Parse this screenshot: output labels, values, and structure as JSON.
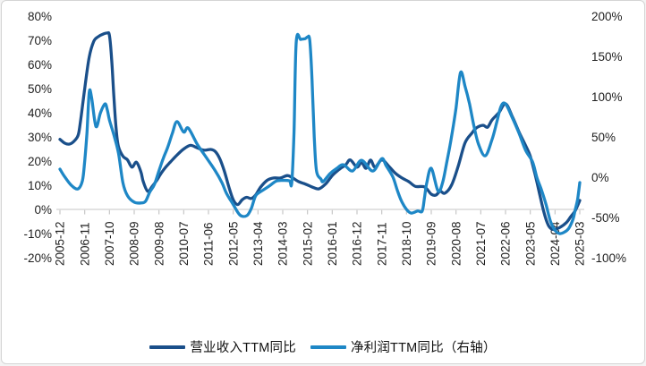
{
  "page": {
    "background": "#ffffff",
    "card_border": "#d4d4d4"
  },
  "chart_data": {
    "type": "line",
    "title": "",
    "grid": "none",
    "legend_position": "bottom",
    "colors": {
      "revenue_line": "#1a4f8a",
      "profit_line": "#1e87c6",
      "axis_line": "#d9d9d9",
      "tick_mark": "#c6c6c6",
      "label_text": "#1f1f1f"
    },
    "left_axis": {
      "min": -20,
      "max": 80,
      "step": 10,
      "labels": [
        "80%",
        "70%",
        "60%",
        "50%",
        "40%",
        "30%",
        "20%",
        "10%",
        "0%",
        "-10%",
        "-20%"
      ]
    },
    "right_axis": {
      "min": -100,
      "max": 200,
      "step": 50,
      "labels": [
        "200%",
        "150%",
        "100%",
        "50%",
        "0%",
        "-50%",
        "-100%"
      ]
    },
    "x_axis": {
      "start": "2005-12",
      "end": "2025-03",
      "label_interval_months": 11,
      "labels": [
        "2005-12",
        "2006-11",
        "2007-10",
        "2008-09",
        "2009-08",
        "2010-07",
        "2011-06",
        "2012-05",
        "2013-04",
        "2014-03",
        "2015-02",
        "2016-01",
        "2016-12",
        "2017-11",
        "2018-10",
        "2019-09",
        "2020-08",
        "2021-07",
        "2022-06",
        "2023-05",
        "2024-04",
        "2025-03"
      ]
    },
    "series": [
      {
        "name": "营业收入TTM同比",
        "axis": "left",
        "color_key": "revenue_line",
        "points": [
          [
            "2005-12",
            29
          ],
          [
            "2006-02",
            27.5
          ],
          [
            "2006-04",
            27
          ],
          [
            "2006-06",
            28
          ],
          [
            "2006-08",
            30.5
          ],
          [
            "2006-09",
            35.5
          ],
          [
            "2006-11",
            50
          ],
          [
            "2007-01",
            63
          ],
          [
            "2007-03",
            69.5
          ],
          [
            "2007-05",
            71.5
          ],
          [
            "2007-07",
            72.5
          ],
          [
            "2007-09",
            73
          ],
          [
            "2007-10",
            72
          ],
          [
            "2007-11",
            62
          ],
          [
            "2007-12",
            46
          ],
          [
            "2008-01",
            33
          ],
          [
            "2008-02",
            26
          ],
          [
            "2008-04",
            22
          ],
          [
            "2008-06",
            20.5
          ],
          [
            "2008-08",
            17.5
          ],
          [
            "2008-10",
            19.5
          ],
          [
            "2008-12",
            15.5
          ],
          [
            "2009-01",
            11.5
          ],
          [
            "2009-03",
            7.5
          ],
          [
            "2009-05",
            9.5
          ],
          [
            "2009-07",
            12
          ],
          [
            "2009-09",
            15
          ],
          [
            "2009-11",
            17.5
          ],
          [
            "2010-01",
            19.5
          ],
          [
            "2010-04",
            22.5
          ],
          [
            "2010-07",
            25
          ],
          [
            "2010-10",
            26.5
          ],
          [
            "2011-01",
            25.5
          ],
          [
            "2011-04",
            24.5
          ],
          [
            "2011-07",
            24.8
          ],
          [
            "2011-09",
            24
          ],
          [
            "2011-11",
            21
          ],
          [
            "2012-01",
            16
          ],
          [
            "2012-03",
            9.5
          ],
          [
            "2012-05",
            4
          ],
          [
            "2012-07",
            2
          ],
          [
            "2012-09",
            4
          ],
          [
            "2012-11",
            5
          ],
          [
            "2013-01",
            4.5
          ],
          [
            "2013-03",
            6
          ],
          [
            "2013-05",
            9
          ],
          [
            "2013-08",
            12
          ],
          [
            "2013-11",
            13
          ],
          [
            "2014-02",
            13
          ],
          [
            "2014-05",
            14
          ],
          [
            "2014-07",
            13.3
          ],
          [
            "2014-10",
            11.5
          ],
          [
            "2015-01",
            10.5
          ],
          [
            "2015-04",
            9.3
          ],
          [
            "2015-07",
            8.5
          ],
          [
            "2015-10",
            10.5
          ],
          [
            "2016-01",
            14
          ],
          [
            "2016-04",
            16.5
          ],
          [
            "2016-07",
            18.5
          ],
          [
            "2016-09",
            20.5
          ],
          [
            "2016-12",
            17.5
          ],
          [
            "2017-02",
            19.5
          ],
          [
            "2017-04",
            17
          ],
          [
            "2017-06",
            20.4
          ],
          [
            "2017-08",
            17.5
          ],
          [
            "2017-11",
            20.5
          ],
          [
            "2018-02",
            18
          ],
          [
            "2018-05",
            15
          ],
          [
            "2018-08",
            13
          ],
          [
            "2018-11",
            11.5
          ],
          [
            "2019-02",
            9.5
          ],
          [
            "2019-06",
            9.3
          ],
          [
            "2019-09",
            6.3
          ],
          [
            "2019-11",
            5.9
          ],
          [
            "2020-01",
            7.5
          ],
          [
            "2020-03",
            6.7
          ],
          [
            "2020-06",
            10
          ],
          [
            "2020-09",
            18
          ],
          [
            "2020-12",
            27.5
          ],
          [
            "2021-03",
            31.5
          ],
          [
            "2021-05",
            33.7
          ],
          [
            "2021-08",
            34.8
          ],
          [
            "2021-10",
            34
          ],
          [
            "2021-12",
            37
          ],
          [
            "2022-03",
            40
          ],
          [
            "2022-06",
            43.7
          ],
          [
            "2022-09",
            38.5
          ],
          [
            "2022-12",
            32
          ],
          [
            "2023-03",
            26.3
          ],
          [
            "2023-05",
            22
          ],
          [
            "2023-07",
            15
          ],
          [
            "2023-09",
            7
          ],
          [
            "2023-11",
            -1
          ],
          [
            "2024-01",
            -6.5
          ],
          [
            "2024-03",
            -8.3
          ],
          [
            "2024-06",
            -7.5
          ],
          [
            "2024-09",
            -5.5
          ],
          [
            "2024-11",
            -3
          ],
          [
            "2025-01",
            -0.5
          ],
          [
            "2025-03",
            3.7
          ]
        ]
      },
      {
        "name": "净利润TTM同比（右轴）",
        "axis": "right",
        "color_key": "profit_line",
        "points": [
          [
            "2005-12",
            10
          ],
          [
            "2006-02",
            1
          ],
          [
            "2006-05",
            -10
          ],
          [
            "2006-08",
            -14.5
          ],
          [
            "2006-10",
            -4
          ],
          [
            "2006-11",
            20
          ],
          [
            "2006-12",
            55
          ],
          [
            "2007-01",
            105
          ],
          [
            "2007-02",
            100
          ],
          [
            "2007-04",
            63
          ],
          [
            "2007-06",
            80
          ],
          [
            "2007-08",
            91
          ],
          [
            "2007-09",
            84
          ],
          [
            "2007-10",
            71
          ],
          [
            "2007-12",
            52
          ],
          [
            "2008-02",
            30
          ],
          [
            "2008-04",
            -7
          ],
          [
            "2008-06",
            -23
          ],
          [
            "2008-09",
            -31
          ],
          [
            "2008-12",
            -32
          ],
          [
            "2009-02",
            -30
          ],
          [
            "2009-04",
            -18
          ],
          [
            "2009-06",
            -9
          ],
          [
            "2009-08",
            8
          ],
          [
            "2009-10",
            24
          ],
          [
            "2009-12",
            38
          ],
          [
            "2010-02",
            55
          ],
          [
            "2010-04",
            69
          ],
          [
            "2010-07",
            56
          ],
          [
            "2010-09",
            61
          ],
          [
            "2011-01",
            41
          ],
          [
            "2011-05",
            24.5
          ],
          [
            "2011-09",
            8
          ],
          [
            "2011-12",
            -7
          ],
          [
            "2012-02",
            -20
          ],
          [
            "2012-05",
            -34
          ],
          [
            "2012-08",
            -47
          ],
          [
            "2012-11",
            -47.8
          ],
          [
            "2013-01",
            -39
          ],
          [
            "2013-03",
            -23
          ],
          [
            "2013-06",
            -16.5
          ],
          [
            "2013-09",
            -11
          ],
          [
            "2013-12",
            -5
          ],
          [
            "2014-03",
            -4
          ],
          [
            "2014-06",
            -4.5
          ],
          [
            "2014-07",
            -7
          ],
          [
            "2014-08",
            55
          ],
          [
            "2014-09",
            168
          ],
          [
            "2014-11",
            171
          ],
          [
            "2015-01",
            172
          ],
          [
            "2015-02",
            174
          ],
          [
            "2015-03",
            170
          ],
          [
            "2015-04",
            122
          ],
          [
            "2015-05",
            50
          ],
          [
            "2015-06",
            8
          ],
          [
            "2015-08",
            -2.5
          ],
          [
            "2015-09",
            -5.5
          ],
          [
            "2015-12",
            4.4
          ],
          [
            "2016-03",
            11
          ],
          [
            "2016-06",
            15.5
          ],
          [
            "2016-10",
            7.7
          ],
          [
            "2017-02",
            21
          ],
          [
            "2017-07",
            7.7
          ],
          [
            "2017-11",
            23
          ],
          [
            "2018-01",
            14
          ],
          [
            "2018-04",
            0
          ],
          [
            "2018-06",
            -17
          ],
          [
            "2018-08",
            -31
          ],
          [
            "2018-10",
            -40
          ],
          [
            "2018-12",
            -44.5
          ],
          [
            "2019-03",
            -42
          ],
          [
            "2019-05",
            -42
          ],
          [
            "2019-06",
            -25
          ],
          [
            "2019-07",
            -7
          ],
          [
            "2019-09",
            11
          ],
          [
            "2019-12",
            -17
          ],
          [
            "2020-02",
            -7
          ],
          [
            "2020-04",
            20
          ],
          [
            "2020-06",
            50
          ],
          [
            "2020-08",
            86
          ],
          [
            "2020-10",
            130
          ],
          [
            "2020-12",
            113
          ],
          [
            "2021-02",
            91
          ],
          [
            "2021-04",
            63
          ],
          [
            "2021-06",
            41
          ],
          [
            "2021-09",
            26.6
          ],
          [
            "2021-12",
            46.7
          ],
          [
            "2022-02",
            67
          ],
          [
            "2022-04",
            88
          ],
          [
            "2022-06",
            91
          ],
          [
            "2022-09",
            74
          ],
          [
            "2022-12",
            54.5
          ],
          [
            "2023-03",
            33
          ],
          [
            "2023-06",
            19
          ],
          [
            "2023-08",
            -1
          ],
          [
            "2023-10",
            -16
          ],
          [
            "2023-12",
            -34
          ],
          [
            "2024-02",
            -55
          ],
          [
            "2024-04",
            -66
          ],
          [
            "2024-06",
            -70
          ],
          [
            "2024-08",
            -68.5
          ],
          [
            "2024-10",
            -64
          ],
          [
            "2024-12",
            -52
          ],
          [
            "2025-01",
            -40
          ],
          [
            "2025-02",
            -28
          ],
          [
            "2025-03",
            -6.7
          ]
        ]
      }
    ]
  }
}
